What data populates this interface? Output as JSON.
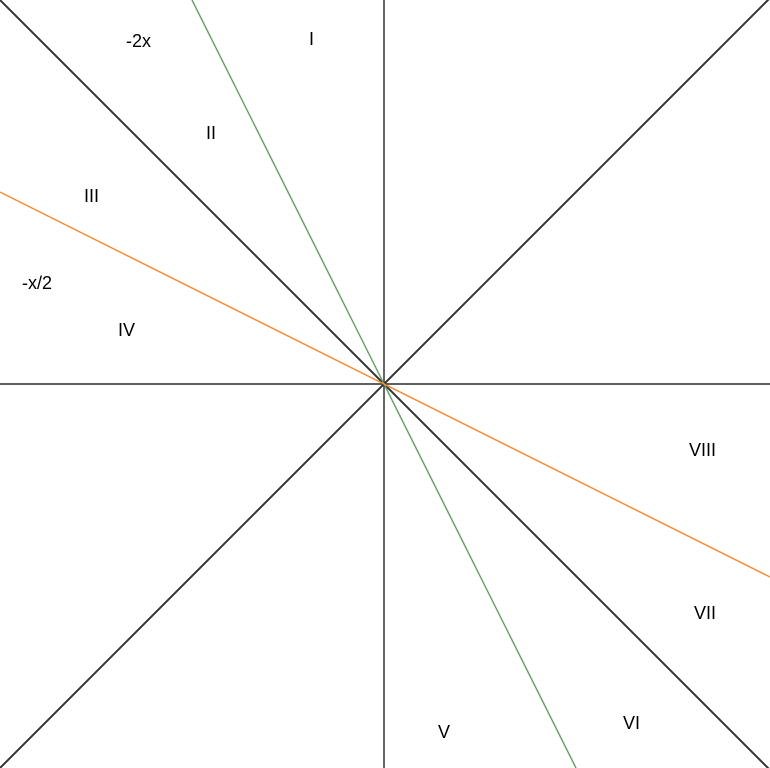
{
  "diagram": {
    "colors": {
      "background": "#ffffff",
      "axis": "#000000",
      "diagonal": "#333333",
      "line_neg_2x": "#6aa36a",
      "line_neg_half_x": "#f0913a"
    },
    "line_labels": {
      "neg_2x": "-2x",
      "neg_half_x": "-x/2"
    },
    "region_labels": {
      "r1": "I",
      "r2": "II",
      "r3": "III",
      "r4": "IV",
      "r5": "V",
      "r6": "VI",
      "r7": "VII",
      "r8": "VIII"
    }
  }
}
